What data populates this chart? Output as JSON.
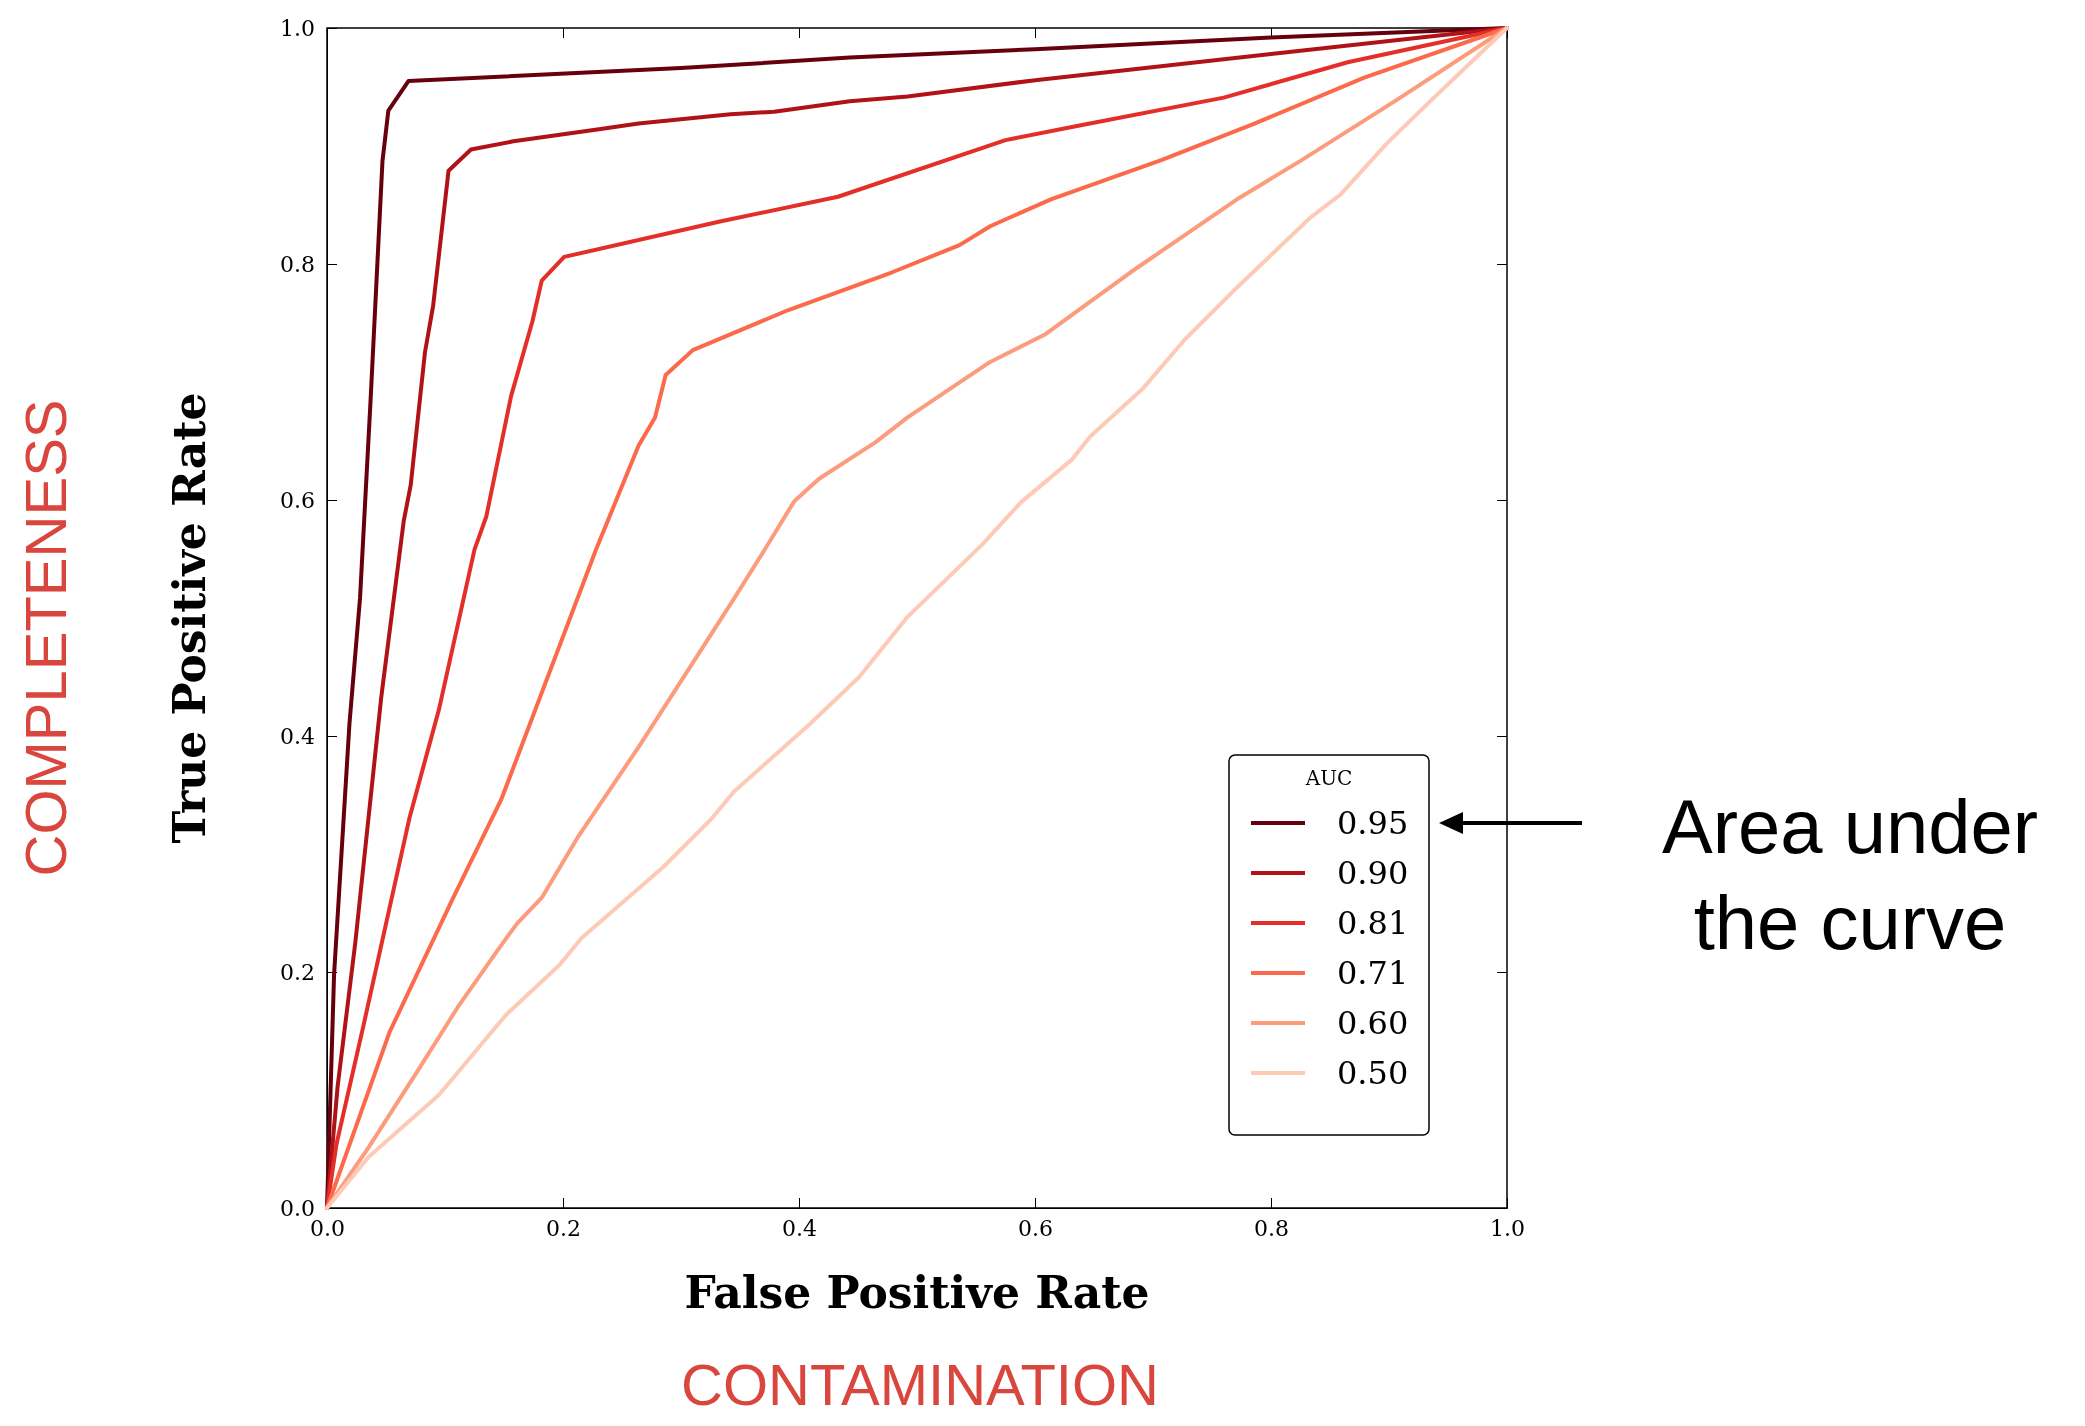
{
  "chart_data": {
    "type": "line",
    "xlabel": "False Positive Rate",
    "ylabel": "True Positive Rate",
    "legend_title": "AUC",
    "legend": "bottom right",
    "grid": false,
    "line_style": "solid",
    "marker": "none",
    "xlim": [
      0,
      1
    ],
    "ylim": [
      0,
      1
    ],
    "xticks": [
      {
        "value": 0,
        "label": "0.0"
      },
      0.2,
      0.4,
      0.6,
      0.8,
      {
        "value": 1,
        "label": "1.0"
      }
    ],
    "yticks": [
      {
        "value": 0,
        "label": "0.0"
      },
      0.2,
      0.4,
      0.6,
      0.8,
      {
        "value": 1,
        "label": "1.0"
      }
    ],
    "annotations": [
      "COMPLETENESS",
      "CONTAMINATION",
      "Area under the curve"
    ],
    "series": [
      {
        "name": "0.95",
        "color": "#67000d",
        "x": [
          0,
          0.006,
          0.019,
          0.028,
          0.037,
          0.047,
          0.052,
          0.069,
          0.3,
          0.443,
          0.6,
          0.8,
          1
        ],
        "values": [
          0,
          0.198,
          0.41,
          0.517,
          0.686,
          0.887,
          0.93,
          0.955,
          0.966,
          0.975,
          0.982,
          0.992,
          1
        ]
      },
      {
        "name": "0.90",
        "color": "#b11218",
        "x": [
          0,
          0.009,
          0.024,
          0.046,
          0.065,
          0.071,
          0.083,
          0.09,
          0.103,
          0.122,
          0.158,
          0.229,
          0.264,
          0.342,
          0.379,
          0.443,
          0.492,
          0.602,
          0.8,
          1
        ],
        "values": [
          0,
          0.103,
          0.225,
          0.433,
          0.582,
          0.613,
          0.725,
          0.765,
          0.879,
          0.897,
          0.904,
          0.914,
          0.919,
          0.927,
          0.929,
          0.938,
          0.942,
          0.956,
          0.978,
          1
        ]
      },
      {
        "name": "0.81",
        "color": "#e32f27",
        "x": [
          0,
          0.008,
          0.031,
          0.07,
          0.095,
          0.125,
          0.135,
          0.156,
          0.174,
          0.182,
          0.201,
          0.333,
          0.433,
          0.575,
          0.641,
          0.76,
          0.865,
          1
        ],
        "values": [
          0,
          0.054,
          0.155,
          0.331,
          0.423,
          0.558,
          0.586,
          0.688,
          0.751,
          0.786,
          0.806,
          0.836,
          0.857,
          0.905,
          0.918,
          0.941,
          0.971,
          1
        ]
      },
      {
        "name": "0.71",
        "color": "#fb6a4a",
        "x": [
          0,
          0.053,
          0.107,
          0.148,
          0.228,
          0.264,
          0.278,
          0.287,
          0.31,
          0.391,
          0.479,
          0.536,
          0.562,
          0.614,
          0.707,
          0.786,
          0.879,
          1
        ],
        "values": [
          0,
          0.149,
          0.263,
          0.347,
          0.558,
          0.646,
          0.67,
          0.706,
          0.727,
          0.761,
          0.793,
          0.816,
          0.832,
          0.855,
          0.888,
          0.919,
          0.958,
          1
        ]
      },
      {
        "name": "0.60",
        "color": "#fc9c7d",
        "x": [
          0,
          0.035,
          0.076,
          0.112,
          0.145,
          0.161,
          0.182,
          0.213,
          0.265,
          0.344,
          0.371,
          0.396,
          0.417,
          0.465,
          0.492,
          0.562,
          0.608,
          0.681,
          0.773,
          0.826,
          0.905,
          1
        ],
        "values": [
          0,
          0.051,
          0.115,
          0.172,
          0.219,
          0.241,
          0.263,
          0.315,
          0.392,
          0.515,
          0.558,
          0.599,
          0.618,
          0.649,
          0.67,
          0.717,
          0.74,
          0.793,
          0.856,
          0.888,
          0.938,
          1
        ]
      },
      {
        "name": "0.50",
        "color": "#fdcab5",
        "x": [
          0,
          0.035,
          0.095,
          0.152,
          0.197,
          0.216,
          0.285,
          0.326,
          0.345,
          0.409,
          0.451,
          0.492,
          0.555,
          0.588,
          0.631,
          0.647,
          0.691,
          0.727,
          0.767,
          0.833,
          0.859,
          0.898,
          0.935,
          1
        ],
        "values": [
          0,
          0.043,
          0.096,
          0.164,
          0.206,
          0.229,
          0.289,
          0.33,
          0.353,
          0.41,
          0.45,
          0.501,
          0.562,
          0.598,
          0.634,
          0.654,
          0.694,
          0.736,
          0.776,
          0.839,
          0.859,
          0.902,
          0.938,
          1
        ]
      }
    ]
  }
}
